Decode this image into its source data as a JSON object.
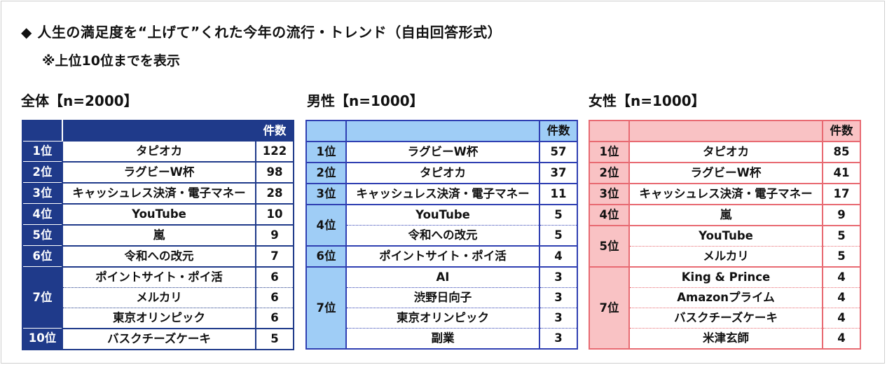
{
  "title": "◆ 人生の満足度を“上げて”くれた今年の流行・トレンド（自由回答形式）",
  "note": "※上位10位までを表示",
  "count_header": "件数",
  "colors": {
    "all_accent": "#1f3a8a",
    "male_accent": "#2f3fb2",
    "male_fill": "#9fcdf6",
    "female_accent": "#e86a72",
    "female_fill": "#f9c2c4"
  },
  "chart_data": [
    {
      "type": "table",
      "title": "全体【n=2000】",
      "columns": [
        "",
        "",
        "件数"
      ],
      "rows": [
        {
          "rank": "1位",
          "item": "タピオカ",
          "count": 122
        },
        {
          "rank": "2位",
          "item": "ラグビーW杯",
          "count": 98
        },
        {
          "rank": "3位",
          "item": "キャッシュレス決済・電子マネー",
          "count": 28
        },
        {
          "rank": "4位",
          "item": "YouTube",
          "count": 10
        },
        {
          "rank": "5位",
          "item": "嵐",
          "count": 9
        },
        {
          "rank": "6位",
          "item": "令和への改元",
          "count": 7
        },
        {
          "rank": "7位",
          "item": "ポイントサイト・ポイ活",
          "count": 6
        },
        {
          "rank": "7位",
          "item": "メルカリ",
          "count": 6
        },
        {
          "rank": "7位",
          "item": "東京オリンピック",
          "count": 6
        },
        {
          "rank": "10位",
          "item": "バスクチーズケーキ",
          "count": 5
        }
      ]
    },
    {
      "type": "table",
      "title": "男性【n=1000】",
      "columns": [
        "",
        "",
        "件数"
      ],
      "rows": [
        {
          "rank": "1位",
          "item": "ラグビーW杯",
          "count": 57
        },
        {
          "rank": "2位",
          "item": "タピオカ",
          "count": 37
        },
        {
          "rank": "3位",
          "item": "キャッシュレス決済・電子マネー",
          "count": 11
        },
        {
          "rank": "4位",
          "item": "YouTube",
          "count": 5
        },
        {
          "rank": "4位",
          "item": "令和への改元",
          "count": 5
        },
        {
          "rank": "6位",
          "item": "ポイントサイト・ポイ活",
          "count": 4
        },
        {
          "rank": "7位",
          "item": "AI",
          "count": 3
        },
        {
          "rank": "7位",
          "item": "渋野日向子",
          "count": 3
        },
        {
          "rank": "7位",
          "item": "東京オリンピック",
          "count": 3
        },
        {
          "rank": "7位",
          "item": "副業",
          "count": 3
        }
      ]
    },
    {
      "type": "table",
      "title": "女性【n=1000】",
      "columns": [
        "",
        "",
        "件数"
      ],
      "rows": [
        {
          "rank": "1位",
          "item": "タピオカ",
          "count": 85
        },
        {
          "rank": "2位",
          "item": "ラグビーW杯",
          "count": 41
        },
        {
          "rank": "3位",
          "item": "キャッシュレス決済・電子マネー",
          "count": 17
        },
        {
          "rank": "4位",
          "item": "嵐",
          "count": 9
        },
        {
          "rank": "5位",
          "item": "YouTube",
          "count": 5
        },
        {
          "rank": "5位",
          "item": "メルカリ",
          "count": 5
        },
        {
          "rank": "7位",
          "item": "King & Prince",
          "count": 4
        },
        {
          "rank": "7位",
          "item": "Amazonプライム",
          "count": 4
        },
        {
          "rank": "7位",
          "item": "バスクチーズケーキ",
          "count": 4
        },
        {
          "rank": "7位",
          "item": "米津玄師",
          "count": 4
        }
      ]
    }
  ]
}
